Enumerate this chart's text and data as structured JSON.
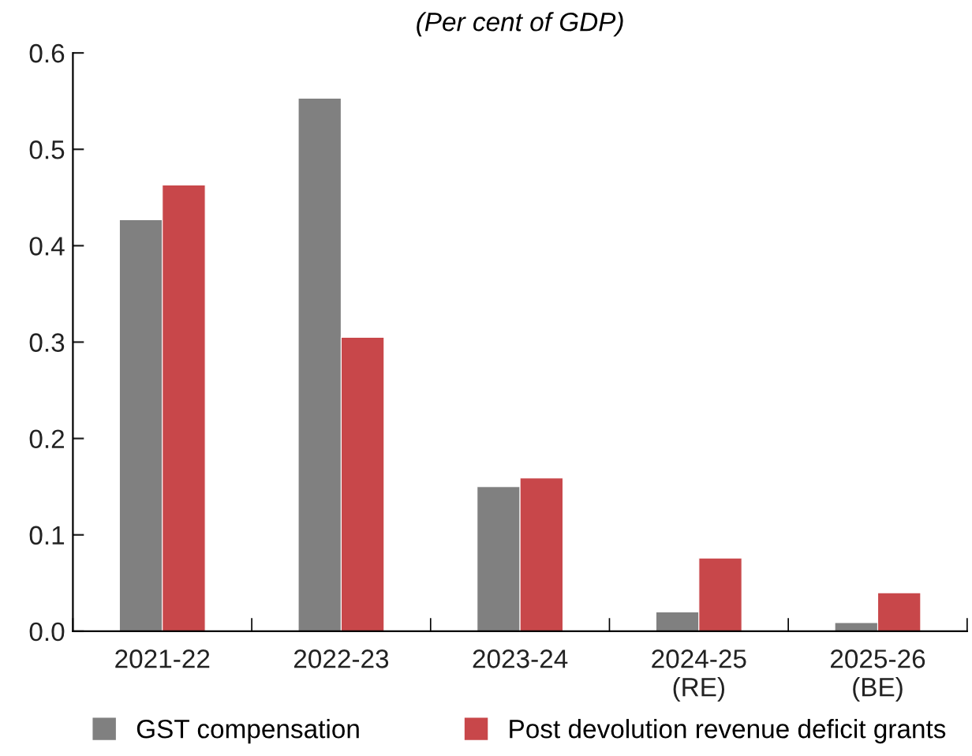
{
  "chart_data": {
    "type": "bar",
    "title": "(Per cent of GDP)",
    "categories": [
      "2021-22",
      "2022-23",
      "2023-24",
      "2024-25\n(RE)",
      "2025-26\n(BE)"
    ],
    "series": [
      {
        "name": "GST compensation",
        "color": "#808080",
        "values": [
          0.427,
          0.553,
          0.15,
          0.02,
          0.009
        ]
      },
      {
        "name": "Post devolution revenue deficit grants",
        "color": "#c8474a",
        "values": [
          0.463,
          0.305,
          0.159,
          0.076,
          0.04
        ]
      }
    ],
    "ylim": [
      0,
      0.6
    ],
    "yticks": [
      {
        "value": 0,
        "label": "0.0"
      },
      0.1,
      0.2,
      0.3,
      0.4,
      0.5,
      0.6
    ],
    "grid": false,
    "legend": "bottom"
  }
}
